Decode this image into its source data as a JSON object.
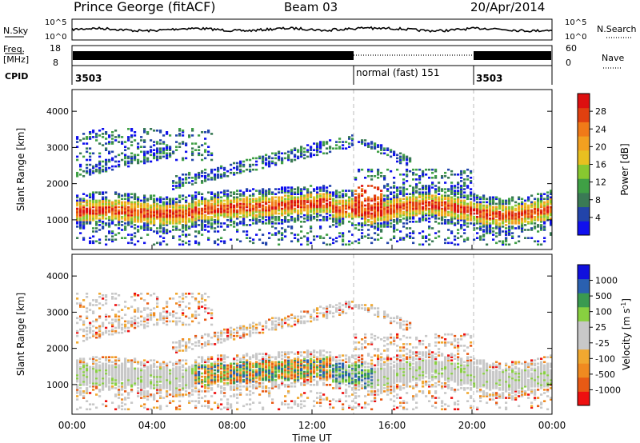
{
  "header": {
    "station": "Prince George (fitACF)",
    "beam": "Beam 03",
    "date": "20/Apr/2014"
  },
  "top_panels": {
    "nsky_label": "N.Sky",
    "nsky_ticks": [
      "10^5",
      "10^0"
    ],
    "nsearch_label": "N.Search",
    "nsearch_ticks": [
      "10^5",
      "10^0"
    ],
    "freq_label": "Freq.",
    "freq_unit": "[MHz]",
    "freq_ticks": [
      "18",
      "8"
    ],
    "nave_label": "Nave",
    "nave_ticks": [
      "60",
      "0"
    ],
    "cpid_label": "CPID",
    "cpid_segments": [
      {
        "label": "3503",
        "start": 0,
        "end": 14
      },
      {
        "label": "normal (fast) 151",
        "start": 14,
        "end": 20
      },
      {
        "label": "3503",
        "start": 20,
        "end": 24
      }
    ]
  },
  "chart_data": [
    {
      "type": "heatmap",
      "name": "power",
      "ylabel": "Slant Range [km]",
      "yticks": [
        "1000",
        "2000",
        "3000",
        "4000"
      ],
      "ylim": [
        180,
        4600
      ],
      "xlim": [
        0,
        24
      ],
      "colorbar": {
        "label": "Power [dB]",
        "ticks": [
          "4",
          "8",
          "12",
          "16",
          "20",
          "24",
          "28"
        ],
        "range": [
          0,
          30
        ],
        "colors": [
          "#1010ee",
          "#2244aa",
          "#3a7a55",
          "#3fa045",
          "#88c830",
          "#e8c020",
          "#f2a020",
          "#f07a18",
          "#e04010",
          "#dd1010"
        ]
      }
    },
    {
      "type": "heatmap",
      "name": "velocity",
      "xlabel": "Time UT",
      "ylabel": "Slant Range [km]",
      "yticks": [
        "1000",
        "2000",
        "3000",
        "4000"
      ],
      "xticks": [
        "00:00",
        "04:00",
        "08:00",
        "12:00",
        "16:00",
        "20:00",
        "00:00"
      ],
      "ylim": [
        180,
        4600
      ],
      "xlim": [
        0,
        24
      ],
      "colorbar": {
        "label": "Velocity [m s",
        "label_sup": "-1",
        "label_close": "]",
        "ticks": [
          "-1000",
          "-500",
          "-100",
          "-25",
          "25",
          "100",
          "500",
          "1000"
        ],
        "colors": [
          "#ee1010",
          "#e85a15",
          "#f08a20",
          "#f0a830",
          "#c8c8c8",
          "#c8c8c8",
          "#88d040",
          "#3a9a50",
          "#2a60b0",
          "#1010dd"
        ]
      }
    }
  ]
}
